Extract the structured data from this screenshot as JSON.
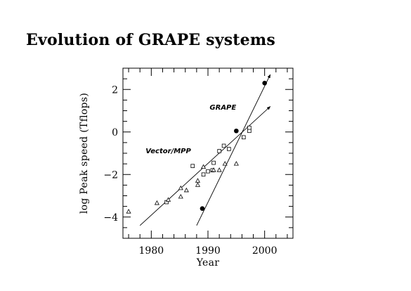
{
  "page": {
    "title": "Evolution of GRAPE systems"
  },
  "chart_data": {
    "type": "scatter",
    "title": "Evolution of GRAPE systems",
    "xlabel": "Year",
    "ylabel": "log Peak speed (Tflops)",
    "xlim": [
      1975,
      2005
    ],
    "ylim": [
      -5,
      3
    ],
    "xticks": [
      1980,
      1990,
      2000
    ],
    "yticks": [
      -4,
      -2,
      0,
      2
    ],
    "xticklabels": [
      "1980",
      "1990",
      "2000"
    ],
    "yticklabels": [
      "−4",
      "−2",
      "0",
      "2"
    ],
    "grid": false,
    "annotations": [
      {
        "text": "GRAPE",
        "x": 1990.3,
        "y": 1.05
      },
      {
        "text": "Vector/MPP",
        "x": 1979.0,
        "y": -1.0
      }
    ],
    "series": [
      {
        "marker": "filled-circle",
        "points": [
          {
            "x": 1989.0,
            "y": -3.6
          },
          {
            "x": 1995.0,
            "y": 0.05
          },
          {
            "x": 2000.0,
            "y": 2.3
          }
        ]
      },
      {
        "marker": "open-square",
        "points": [
          {
            "x": 1982.7,
            "y": -3.3
          },
          {
            "x": 1987.3,
            "y": -1.6
          },
          {
            "x": 1989.2,
            "y": -2.0
          },
          {
            "x": 1990.0,
            "y": -1.85
          },
          {
            "x": 1990.8,
            "y": -1.8
          },
          {
            "x": 1991.0,
            "y": -1.45
          },
          {
            "x": 1992.0,
            "y": -0.9
          },
          {
            "x": 1992.8,
            "y": -0.65
          },
          {
            "x": 1993.7,
            "y": -0.8
          },
          {
            "x": 1996.3,
            "y": -0.25
          },
          {
            "x": 1997.3,
            "y": 0.05
          },
          {
            "x": 1997.3,
            "y": 0.2
          }
        ]
      },
      {
        "marker": "open-triangle",
        "points": [
          {
            "x": 1976.0,
            "y": -3.75
          },
          {
            "x": 1981.0,
            "y": -3.35
          },
          {
            "x": 1983.0,
            "y": -3.2
          },
          {
            "x": 1985.2,
            "y": -3.05
          },
          {
            "x": 1985.2,
            "y": -2.65
          },
          {
            "x": 1986.2,
            "y": -2.75
          },
          {
            "x": 1988.2,
            "y": -2.5
          },
          {
            "x": 1988.2,
            "y": -2.3
          },
          {
            "x": 1989.2,
            "y": -1.65
          },
          {
            "x": 1991.0,
            "y": -1.8
          },
          {
            "x": 1992.0,
            "y": -1.8
          },
          {
            "x": 1993.0,
            "y": -1.5
          },
          {
            "x": 1995.0,
            "y": -1.5
          }
        ]
      }
    ],
    "trend_lines": [
      {
        "name": "GRAPE",
        "from": {
          "x": 1988.0,
          "y": -4.4
        },
        "to": {
          "x": 2001.0,
          "y": 2.7
        },
        "arrow": true
      },
      {
        "name": "Vector/MPP",
        "from": {
          "x": 1978.0,
          "y": -4.4
        },
        "to": {
          "x": 2001.0,
          "y": 1.2
        },
        "arrow": true
      }
    ]
  }
}
